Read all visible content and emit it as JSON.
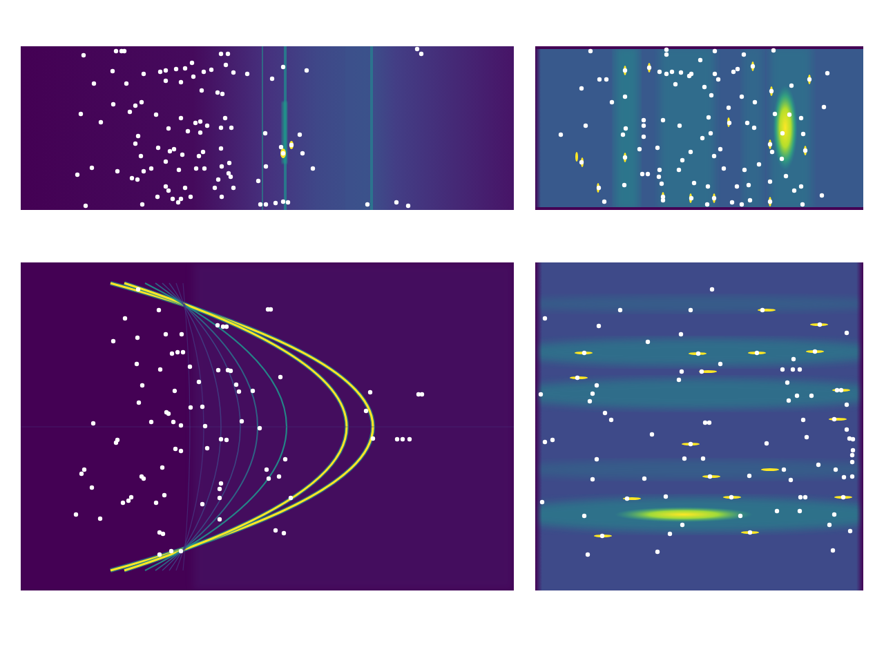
{
  "chart_data": [
    {
      "type": "scatter",
      "color": "#ffffff",
      "marker": "circle",
      "tick_labels": false,
      "xlim": [
        0,
        714
      ],
      "ylim": [
        237,
        0
      ],
      "x": [
        91,
        138,
        146,
        150,
        290,
        300,
        133,
        178,
        202,
        210,
        225,
        238,
        248,
        265,
        276,
        297,
        308,
        106,
        153,
        210,
        232,
        250,
        328,
        380,
        414,
        364,
        262,
        285,
        292,
        175,
        166,
        134,
        87,
        116,
        158,
        196,
        232,
        253,
        260,
        270,
        296,
        305,
        214,
        242,
        260,
        290,
        170,
        166,
        354,
        404,
        199,
        216,
        222,
        234,
        264,
        290,
        377,
        392,
        408,
        174,
        210,
        258,
        291,
        302,
        103,
        140,
        161,
        169,
        178,
        189,
        82,
        229,
        254,
        266,
        286,
        301,
        304,
        355,
        423,
        344,
        210,
        214,
        238,
        281,
        291,
        308,
        220,
        198,
        232,
        246,
        228,
        94,
        176,
        347,
        355,
        369,
        380,
        387,
        502,
        544,
        561,
        574,
        580,
        380
      ],
      "values": [
        13,
        7,
        7,
        7,
        11,
        11,
        36,
        40,
        37,
        35,
        33,
        32,
        24,
        37,
        34,
        27,
        38,
        54,
        54,
        50,
        52,
        44,
        40,
        30,
        35,
        47,
        64,
        67,
        69,
        81,
        86,
        84,
        98,
        110,
        95,
        99,
        104,
        111,
        109,
        115,
        104,
        118,
        119,
        123,
        125,
        118,
        130,
        141,
        126,
        128,
        147,
        152,
        149,
        157,
        153,
        148,
        146,
        143,
        155,
        159,
        167,
        159,
        174,
        169,
        176,
        181,
        191,
        193,
        181,
        177,
        186,
        179,
        177,
        177,
        193,
        184,
        189,
        174,
        177,
        195,
        203,
        209,
        205,
        205,
        218,
        205,
        221,
        218,
        221,
        218,
        226,
        231,
        229,
        229,
        229,
        227,
        225,
        226,
        229,
        226,
        231,
        4,
        11,
        155
      ]
    },
    {
      "type": "scatter",
      "color": "#ffffff",
      "marker": "circle",
      "tick_labels": false,
      "xlim": [
        0,
        475
      ],
      "ylim": [
        237,
        0
      ],
      "x": [
        80,
        190,
        190,
        260,
        302,
        345,
        239,
        293,
        315,
        130,
        165,
        180,
        190,
        198,
        211,
        226,
        260,
        287,
        397,
        423,
        67,
        93,
        103,
        203,
        223,
        245,
        265,
        342,
        371,
        111,
        130,
        255,
        299,
        318,
        418,
        280,
        347,
        368,
        385,
        131,
        157,
        157,
        185,
        209,
        251,
        281,
        307,
        317,
        37,
        73,
        127,
        157,
        242,
        254,
        358,
        388,
        268,
        151,
        177,
        340,
        391,
        130,
        225,
        259,
        343,
        67,
        213,
        208,
        155,
        163,
        180,
        179,
        273,
        303,
        324,
        357,
        363,
        92,
        129,
        183,
        230,
        250,
        292,
        309,
        340,
        375,
        385,
        415,
        100,
        185,
        226,
        259,
        285,
        299,
        311,
        340,
        387,
        249,
        185
      ],
      "values": [
        7,
        5,
        12,
        7,
        12,
        6,
        20,
        33,
        29,
        35,
        31,
        37,
        40,
        37,
        38,
        40,
        40,
        37,
        48,
        39,
        61,
        48,
        48,
        55,
        43,
        59,
        48,
        65,
        57,
        81,
        73,
        71,
        73,
        81,
        88,
        89,
        98,
        99,
        104,
        119,
        107,
        115,
        107,
        115,
        103,
        111,
        111,
        118,
        128,
        115,
        128,
        131,
        133,
        126,
        126,
        127,
        149,
        149,
        147,
        142,
        151,
        161,
        153,
        159,
        153,
        168,
        165,
        179,
        185,
        185,
        179,
        189,
        177,
        179,
        171,
        163,
        188,
        205,
        201,
        199,
        198,
        203,
        203,
        201,
        196,
        209,
        203,
        216,
        225,
        223,
        220,
        220,
        226,
        229,
        223,
        225,
        229,
        229,
        218
      ]
    },
    {
      "type": "scatter",
      "color": "#ffffff",
      "marker": "circle",
      "tick_labels": false,
      "xlim": [
        0,
        714
      ],
      "ylim": [
        475,
        0
      ],
      "x": [
        170,
        151,
        200,
        134,
        169,
        210,
        233,
        285,
        298,
        219,
        227,
        235,
        168,
        202,
        245,
        286,
        300,
        304,
        176,
        223,
        258,
        312,
        316,
        336,
        171,
        211,
        214,
        246,
        263,
        105,
        140,
        138,
        189,
        221,
        232,
        267,
        290,
        298,
        320,
        224,
        232,
        270,
        205,
        178,
        175,
        92,
        88,
        103,
        80,
        115,
        156,
        160,
        148,
        196,
        208,
        263,
        288,
        288,
        290,
        288,
        356,
        383,
        374,
        359,
        391,
        369,
        381,
        201,
        206,
        218,
        232,
        201,
        358,
        362,
        376,
        506,
        500,
        510,
        545,
        553,
        563,
        576,
        581,
        293,
        346
      ],
      "values": [
        39,
        81,
        69,
        114,
        109,
        104,
        104,
        91,
        93,
        132,
        130,
        130,
        147,
        155,
        151,
        156,
        156,
        157,
        178,
        186,
        173,
        177,
        187,
        186,
        203,
        217,
        219,
        210,
        209,
        233,
        257,
        261,
        231,
        231,
        236,
        237,
        256,
        257,
        230,
        270,
        273,
        269,
        297,
        313,
        310,
        300,
        306,
        326,
        365,
        371,
        345,
        340,
        348,
        348,
        337,
        350,
        341,
        328,
        320,
        372,
        300,
        285,
        310,
        313,
        341,
        388,
        392,
        391,
        393,
        418,
        418,
        423,
        68,
        68,
        166,
        188,
        215,
        255,
        256,
        256,
        256,
        191,
        191,
        93,
        240
      ]
    },
    {
      "type": "scatter",
      "color": "#ffffff",
      "marker": "circle",
      "tick_labels": false,
      "xlim": [
        0,
        475
      ],
      "ylim": [
        475,
        0
      ],
      "x": [
        256,
        14,
        123,
        225,
        329,
        412,
        92,
        451,
        163,
        211,
        71,
        236,
        321,
        405,
        268,
        374,
        212,
        241,
        358,
        373,
        383,
        61,
        208,
        89,
        365,
        437,
        443,
        8,
        83,
        79,
        101,
        110,
        246,
        252,
        367,
        379,
        400,
        388,
        433,
        451,
        451,
        455,
        460,
        14,
        25,
        169,
        225,
        335,
        393,
        459,
        89,
        216,
        243,
        360,
        410,
        459,
        435,
        459,
        447,
        83,
        158,
        253,
        310,
        370,
        133,
        189,
        284,
        384,
        391,
        446,
        10,
        71,
        213,
        297,
        350,
        383,
        433,
        456,
        97,
        195,
        311,
        426,
        76,
        177,
        431,
        460
      ],
      "values": [
        39,
        81,
        69,
        69,
        69,
        90,
        92,
        102,
        115,
        104,
        131,
        132,
        131,
        129,
        147,
        140,
        158,
        158,
        155,
        155,
        155,
        167,
        170,
        178,
        174,
        185,
        185,
        191,
        190,
        201,
        218,
        228,
        232,
        232,
        200,
        193,
        193,
        228,
        227,
        206,
        242,
        255,
        272,
        260,
        257,
        249,
        263,
        262,
        253,
        279,
        285,
        284,
        284,
        300,
        293,
        289,
        300,
        310,
        311,
        314,
        313,
        310,
        309,
        315,
        342,
        339,
        340,
        340,
        340,
        340,
        347,
        367,
        380,
        367,
        360,
        360,
        365,
        389,
        396,
        393,
        391,
        380,
        423,
        419,
        417,
        256
      ]
    }
  ]
}
